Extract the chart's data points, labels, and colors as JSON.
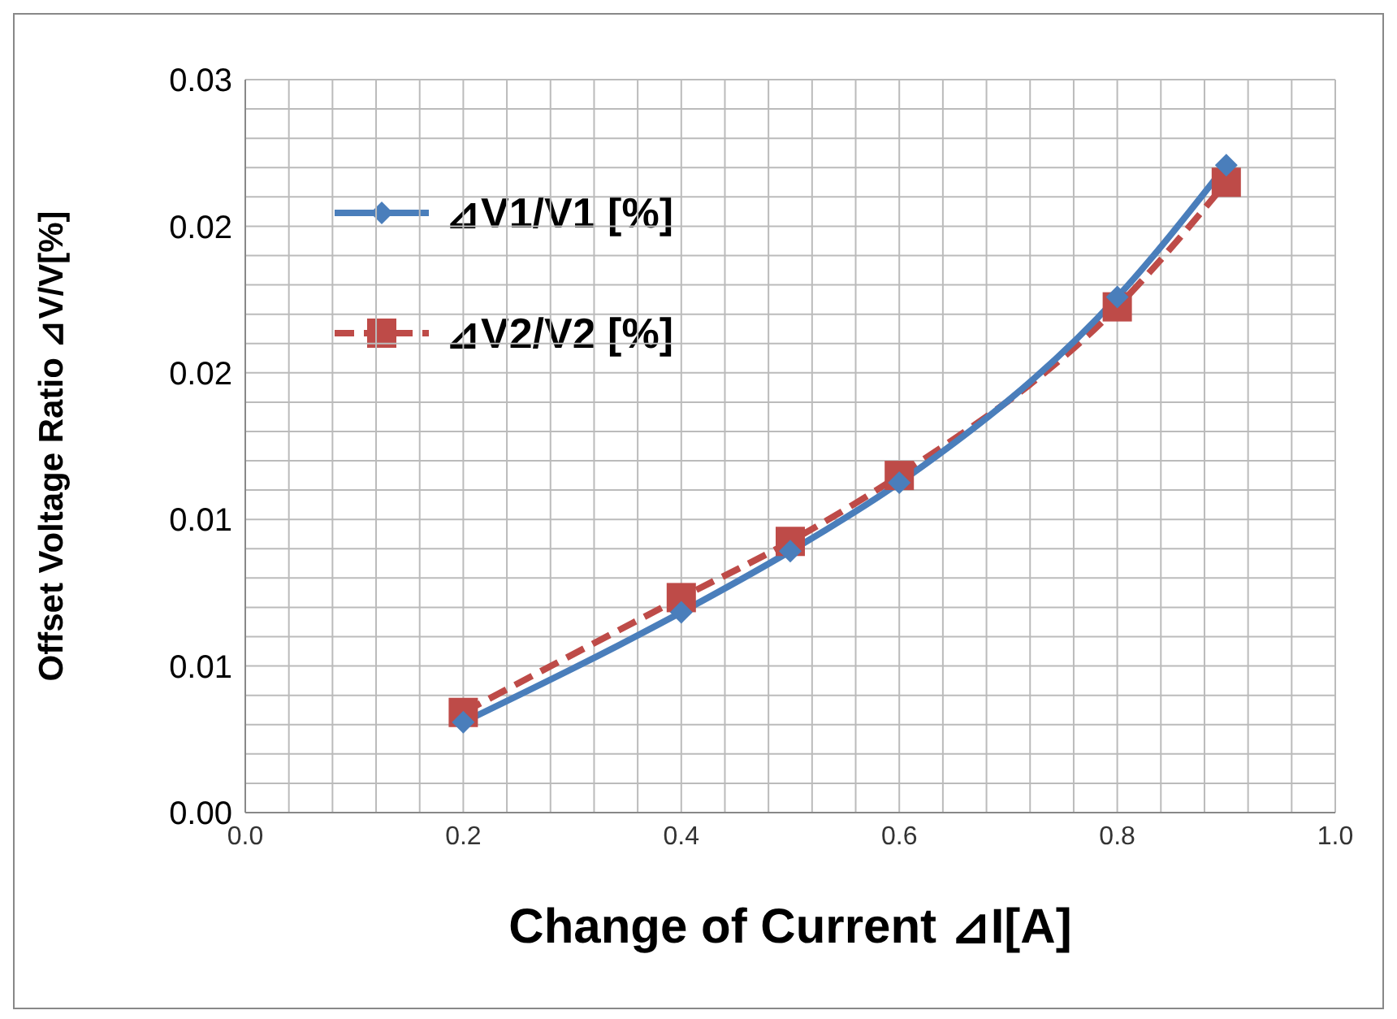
{
  "chart_data": {
    "type": "line",
    "xlabel": "Change of Current ⊿I[A]",
    "ylabel": "Offset Voltage Ratio ⊿V/V[%]",
    "x": [
      0.2,
      0.4,
      0.5,
      0.6,
      0.8,
      0.9
    ],
    "series": [
      {
        "name": "⊿V1/V1 [%]",
        "color": "#4a7ebb",
        "values": [
          0.0037,
          0.0082,
          0.0107,
          0.0135,
          0.0211,
          0.0265
        ],
        "marker": "diamond",
        "line_style": "solid"
      },
      {
        "name": "⊿V2/V2 [%]",
        "color": "#be4b48",
        "values": [
          0.0041,
          0.0088,
          0.0111,
          0.0138,
          0.0207,
          0.0258
        ],
        "marker": "square",
        "line_style": "dashed"
      }
    ],
    "xlim": [
      0,
      1
    ],
    "xticks": [
      {
        "value": 0,
        "label": "0.0"
      },
      {
        "value": 0.04,
        "label": null
      },
      {
        "value": 0.08,
        "label": null
      },
      {
        "value": 0.12,
        "label": null
      },
      {
        "value": 0.16,
        "label": null
      },
      {
        "value": 0.2,
        "label": "0.2"
      },
      {
        "value": 0.24,
        "label": null
      },
      {
        "value": 0.28,
        "label": null
      },
      {
        "value": 0.32,
        "label": null
      },
      {
        "value": 0.36,
        "label": null
      },
      {
        "value": 0.4,
        "label": "0.4"
      },
      {
        "value": 0.44,
        "label": null
      },
      {
        "value": 0.48,
        "label": null
      },
      {
        "value": 0.52,
        "label": null
      },
      {
        "value": 0.56,
        "label": null
      },
      {
        "value": 0.6,
        "label": "0.6"
      },
      {
        "value": 0.64,
        "label": null
      },
      {
        "value": 0.68,
        "label": null
      },
      {
        "value": 0.72,
        "label": null
      },
      {
        "value": 0.76,
        "label": null
      },
      {
        "value": 0.8,
        "label": "0.8"
      },
      {
        "value": 0.84,
        "label": null
      },
      {
        "value": 0.88,
        "label": null
      },
      {
        "value": 0.92,
        "label": null
      },
      {
        "value": 0.96,
        "label": null
      },
      {
        "value": 1,
        "label": "1.0"
      }
    ],
    "ylim": [
      0,
      0.03
    ],
    "yticks": [
      {
        "value": 0,
        "label": "0.00"
      },
      {
        "value": 0.0012,
        "label": null
      },
      {
        "value": 0.0024,
        "label": null
      },
      {
        "value": 0.0036,
        "label": null
      },
      {
        "value": 0.0048,
        "label": null
      },
      {
        "value": 0.006,
        "label": "0.01"
      },
      {
        "value": 0.0072,
        "label": null
      },
      {
        "value": 0.0084,
        "label": null
      },
      {
        "value": 0.0096,
        "label": null
      },
      {
        "value": 0.0108,
        "label": null
      },
      {
        "value": 0.012,
        "label": "0.01"
      },
      {
        "value": 0.0132,
        "label": null
      },
      {
        "value": 0.0144,
        "label": null
      },
      {
        "value": 0.0156,
        "label": null
      },
      {
        "value": 0.0168,
        "label": null
      },
      {
        "value": 0.018,
        "label": "0.02"
      },
      {
        "value": 0.0192,
        "label": null
      },
      {
        "value": 0.0204,
        "label": null
      },
      {
        "value": 0.0216,
        "label": null
      },
      {
        "value": 0.0228,
        "label": null
      },
      {
        "value": 0.024,
        "label": "0.02"
      },
      {
        "value": 0.0252,
        "label": null
      },
      {
        "value": 0.0264,
        "label": null
      },
      {
        "value": 0.0276,
        "label": null
      },
      {
        "value": 0.0288,
        "label": null
      },
      {
        "value": 0.03,
        "label": "0.03"
      }
    ],
    "grid": true,
    "legend": "top left"
  }
}
